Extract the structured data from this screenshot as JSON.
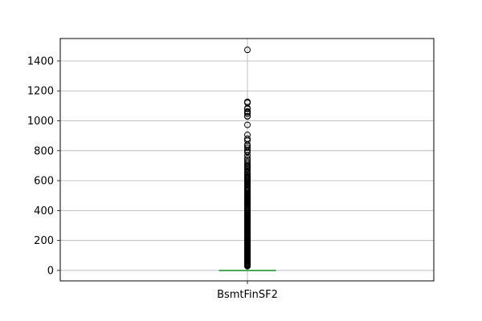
{
  "chart_data": {
    "type": "box",
    "categories": [
      "BsmtFinSF2"
    ],
    "ylim": [
      -70,
      1550
    ],
    "yticks": [
      0,
      200,
      400,
      600,
      800,
      1000,
      1200,
      1400
    ],
    "grid": true,
    "box": {
      "min": 0,
      "q1": 0,
      "median": 0,
      "q3": 0,
      "max": 0
    },
    "outliers": [
      1474,
      1127,
      1120,
      1085,
      1080,
      1063,
      1057,
      1047,
      1031,
      1029,
      973,
      906,
      880,
      868,
      841,
      833,
      820,
      806,
      795,
      790,
      768,
      750,
      738,
      725,
      713,
      702,
      696,
      690,
      682,
      672,
      660,
      654,
      645,
      638,
      630,
      624,
      618,
      612,
      608,
      600,
      594,
      590,
      580,
      573,
      568,
      560,
      553,
      547,
      544,
      539,
      532,
      522,
      513,
      506,
      500,
      496,
      492,
      488,
      484,
      481,
      479,
      477,
      474,
      471,
      468,
      465,
      462,
      458,
      454,
      450,
      445,
      440,
      435,
      430,
      420,
      413,
      405,
      399,
      394,
      388,
      382,
      377,
      372,
      368,
      364,
      360,
      354,
      350,
      345,
      340,
      336,
      330,
      324,
      320,
      315,
      310,
      304,
      298,
      294,
      290,
      285,
      280,
      276,
      271,
      264,
      259,
      253,
      248,
      242,
      237,
      231,
      226,
      220,
      216,
      211,
      206,
      200,
      196,
      192,
      188,
      184,
      180,
      175,
      170,
      165,
      160,
      155,
      150,
      145,
      140,
      135,
      129,
      125,
      120,
      116,
      110,
      105,
      100,
      95,
      90,
      86,
      80,
      76,
      71,
      66,
      60,
      56,
      50,
      46,
      41,
      38,
      35,
      32,
      28
    ],
    "colors": {
      "median": "#2ca02c",
      "box": "#1f77b4",
      "whisker": "#1f77b4",
      "outlier": "#000000",
      "grid": "#b0b0b0"
    }
  }
}
